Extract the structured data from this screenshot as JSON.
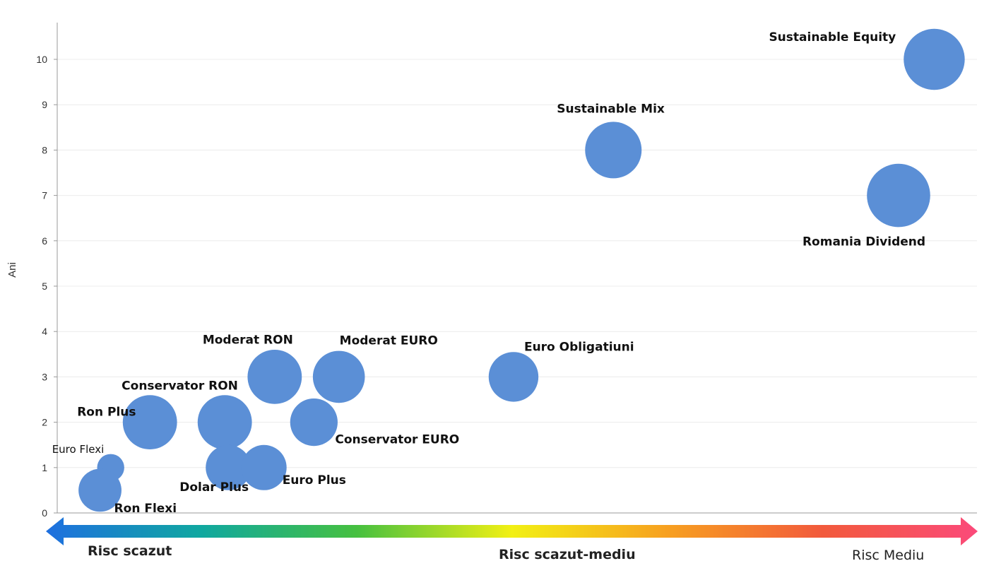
{
  "chart_data": {
    "type": "scatter",
    "ylabel": "Ani",
    "ylim": [
      0,
      10.8
    ],
    "yticks": [
      0,
      1,
      2,
      3,
      4,
      5,
      6,
      7,
      8,
      9,
      10
    ],
    "grid": true,
    "colors": {
      "bubble": "#5b8fd6",
      "gridline": "#ececec",
      "axis": "#999999"
    },
    "points": [
      {
        "label": "Euro Flexi",
        "x": 1.75,
        "y": 1,
        "size": 0.6
      },
      {
        "label": "Ron Flexi",
        "x": 1.6,
        "y": 0.5,
        "size": 0.95
      },
      {
        "label": "Ron Plus",
        "x": 2.3,
        "y": 2,
        "size": 1.2
      },
      {
        "label": "Conservator RON",
        "x": 3.35,
        "y": 2,
        "size": 1.2
      },
      {
        "label": "Dolar Plus",
        "x": 3.4,
        "y": 1,
        "size": 1.0
      },
      {
        "label": "Euro Plus",
        "x": 3.9,
        "y": 1,
        "size": 1.0
      },
      {
        "label": "Moderat RON",
        "x": 4.05,
        "y": 3,
        "size": 1.2
      },
      {
        "label": "Conservator EURO",
        "x": 4.6,
        "y": 2,
        "size": 1.05
      },
      {
        "label": "Moderat EURO",
        "x": 4.95,
        "y": 3,
        "size": 1.15
      },
      {
        "label": "Euro Obligatiuni",
        "x": 7.4,
        "y": 3,
        "size": 1.1
      },
      {
        "label": "Sustainable Mix",
        "x": 8.8,
        "y": 8,
        "size": 1.25
      },
      {
        "label": "Romania Dividend",
        "x": 12.8,
        "y": 7,
        "size": 1.4
      },
      {
        "label": "Sustainable Equity",
        "x": 13.3,
        "y": 10,
        "size": 1.35
      }
    ]
  },
  "risk_scale": {
    "left": "Risc scazut",
    "middle": "Risc scazut-mediu",
    "right": "Risc Mediu",
    "gradient": [
      "#1e6fe0",
      "#10a8a0",
      "#46c040",
      "#f2f014",
      "#f7a020",
      "#f25a3c",
      "#fb4a7a"
    ]
  }
}
